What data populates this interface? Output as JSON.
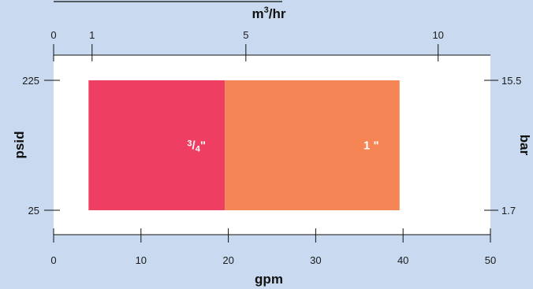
{
  "chart_data": {
    "type": "bar",
    "subtype": "range-rectangles",
    "colors": {
      "background": "#c9d9ef",
      "plot_area": "#ffffff",
      "axis": "#111111"
    },
    "axes": {
      "bottom": {
        "label": "gpm",
        "range": [
          0,
          50
        ],
        "ticks": [
          "0",
          "10",
          "20",
          "30",
          "40",
          "50"
        ]
      },
      "top": {
        "label": "m³/hr",
        "label_base": "m",
        "label_sup": "3",
        "label_rest": "/hr",
        "range": [
          0,
          11.36
        ],
        "ticks": [
          "0",
          "1",
          "5",
          "10"
        ]
      },
      "left": {
        "label": "psid",
        "ticks": [
          "25",
          "225"
        ]
      },
      "right": {
        "label": "bar",
        "ticks": [
          "1.7",
          "15.5"
        ]
      }
    },
    "bars": [
      {
        "name": "3/4\"",
        "num": "3",
        "den": "4",
        "suffix": "\"",
        "x_range": [
          4,
          19.6
        ],
        "y_range": [
          25,
          225
        ],
        "color": "#ee3e62"
      },
      {
        "name": "1\"",
        "num": "1",
        "den": "",
        "suffix": " \"",
        "x_range": [
          19.6,
          39.6
        ],
        "y_range": [
          25,
          225
        ],
        "color": "#f58555"
      }
    ],
    "grid": false,
    "legend": "none"
  }
}
